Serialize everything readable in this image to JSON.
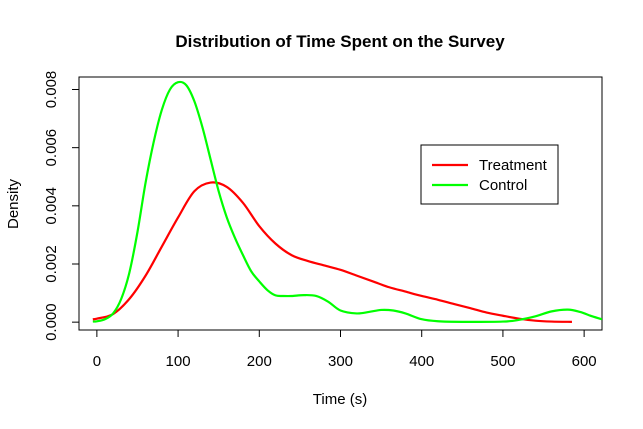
{
  "chart_data": {
    "type": "line",
    "title": "Distribution of Time Spent on the Survey",
    "xlabel": "Time (s)",
    "ylabel": "Density",
    "xlim": [
      -22,
      622
    ],
    "ylim": [
      -0.00027,
      0.00843
    ],
    "x_ticks": [
      0,
      100,
      200,
      300,
      400,
      500,
      600
    ],
    "x_tick_labels": [
      "0",
      "100",
      "200",
      "300",
      "400",
      "500",
      "600"
    ],
    "y_ticks": [
      0.0,
      0.002,
      0.004,
      0.006,
      0.008
    ],
    "y_tick_labels": [
      "0.000",
      "0.002",
      "0.004",
      "0.006",
      "0.008"
    ],
    "legend_position": "top-right",
    "series": [
      {
        "name": "Treatment",
        "color": "#ff0000",
        "points": [
          [
            -5,
            0.0001
          ],
          [
            0,
            0.00012
          ],
          [
            20,
            0.00028
          ],
          [
            40,
            0.0008
          ],
          [
            60,
            0.0016
          ],
          [
            80,
            0.0026
          ],
          [
            100,
            0.0036
          ],
          [
            120,
            0.0045
          ],
          [
            140,
            0.0048
          ],
          [
            160,
            0.00465
          ],
          [
            180,
            0.0041
          ],
          [
            200,
            0.0033
          ],
          [
            220,
            0.0027
          ],
          [
            240,
            0.0023
          ],
          [
            260,
            0.0021
          ],
          [
            280,
            0.00195
          ],
          [
            300,
            0.0018
          ],
          [
            320,
            0.0016
          ],
          [
            340,
            0.0014
          ],
          [
            360,
            0.0012
          ],
          [
            380,
            0.00105
          ],
          [
            400,
            0.0009
          ],
          [
            420,
            0.00077
          ],
          [
            440,
            0.00062
          ],
          [
            460,
            0.00048
          ],
          [
            480,
            0.00033
          ],
          [
            500,
            0.00022
          ],
          [
            520,
            0.00012
          ],
          [
            540,
            5e-05
          ],
          [
            560,
            2e-05
          ],
          [
            585,
            1e-05
          ]
        ]
      },
      {
        "name": "Control",
        "color": "#00ff00",
        "points": [
          [
            -5,
            2e-05
          ],
          [
            0,
            3e-05
          ],
          [
            10,
            0.0001
          ],
          [
            20,
            0.0003
          ],
          [
            30,
            0.0008
          ],
          [
            40,
            0.0017
          ],
          [
            50,
            0.0031
          ],
          [
            60,
            0.0048
          ],
          [
            70,
            0.0062
          ],
          [
            80,
            0.0073
          ],
          [
            90,
            0.008
          ],
          [
            100,
            0.00825
          ],
          [
            110,
            0.00815
          ],
          [
            120,
            0.0076
          ],
          [
            130,
            0.0067
          ],
          [
            140,
            0.0056
          ],
          [
            150,
            0.0045
          ],
          [
            160,
            0.0036
          ],
          [
            170,
            0.0029
          ],
          [
            180,
            0.0023
          ],
          [
            190,
            0.00175
          ],
          [
            200,
            0.0014
          ],
          [
            210,
            0.0011
          ],
          [
            220,
            0.00092
          ],
          [
            230,
            0.0009
          ],
          [
            240,
            0.0009
          ],
          [
            255,
            0.00093
          ],
          [
            270,
            0.0009
          ],
          [
            285,
            0.0007
          ],
          [
            300,
            0.0004
          ],
          [
            320,
            0.0003
          ],
          [
            335,
            0.00035
          ],
          [
            350,
            0.00042
          ],
          [
            365,
            0.0004
          ],
          [
            380,
            0.0003
          ],
          [
            400,
            0.0001
          ],
          [
            420,
            3e-05
          ],
          [
            450,
            1e-05
          ],
          [
            500,
            2e-05
          ],
          [
            520,
            8e-05
          ],
          [
            540,
            0.0002
          ],
          [
            560,
            0.00037
          ],
          [
            580,
            0.00043
          ],
          [
            595,
            0.00035
          ],
          [
            610,
            0.0002
          ],
          [
            622,
            0.0001
          ]
        ]
      }
    ]
  }
}
